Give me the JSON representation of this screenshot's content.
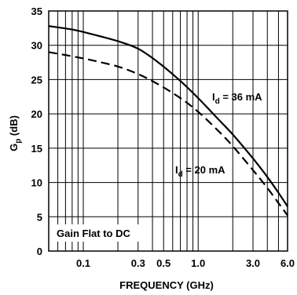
{
  "chart_data": {
    "type": "line",
    "xlabel": "FREQUENCY (GHz)",
    "ylabel_main": "G",
    "ylabel_sub": "p",
    "ylabel_rest": " (dB)",
    "x_scale": "log",
    "xlim": [
      0.05,
      6.0
    ],
    "ylim": [
      0,
      35
    ],
    "x_ticks": [
      {
        "value": 0.1,
        "label": "0.1"
      },
      {
        "value": 0.3,
        "label": "0.3"
      },
      {
        "value": 0.5,
        "label": "0.5"
      },
      {
        "value": 1.0,
        "label": "1.0"
      },
      {
        "value": 3.0,
        "label": "3.0"
      },
      {
        "value": 6.0,
        "label": "6.0"
      }
    ],
    "x_gridlines": [
      0.06,
      0.07,
      0.08,
      0.09,
      0.1,
      0.2,
      0.3,
      0.4,
      0.5,
      0.6,
      0.7,
      0.8,
      0.9,
      1.0,
      2.0,
      3.0,
      4.0,
      5.0,
      6.0
    ],
    "y_ticks": [
      0,
      5,
      10,
      15,
      20,
      25,
      30,
      35
    ],
    "grid": true,
    "series": [
      {
        "label_main": "I",
        "label_sub": "d",
        "label_rest": " = 36 mA",
        "style": "solid",
        "x": [
          0.05,
          0.08,
          0.12,
          0.2,
          0.3,
          0.45,
          0.7,
          1.0,
          1.5,
          2.0,
          3.0,
          4.0,
          5.0,
          6.0
        ],
        "y": [
          32.8,
          32.3,
          31.6,
          30.6,
          29.5,
          27.5,
          24.8,
          22.3,
          19.2,
          17.0,
          13.5,
          10.8,
          8.5,
          6.5
        ]
      },
      {
        "label_main": "I",
        "label_sub": "d",
        "label_rest": " = 20 mA",
        "style": "dashed",
        "x": [
          0.05,
          0.08,
          0.12,
          0.2,
          0.3,
          0.45,
          0.7,
          1.0,
          1.5,
          2.0,
          3.0,
          4.0,
          5.0,
          6.0
        ],
        "y": [
          29.0,
          28.4,
          27.8,
          26.9,
          25.8,
          24.3,
          22.3,
          20.3,
          17.5,
          15.3,
          11.8,
          9.2,
          7.0,
          5.2
        ]
      }
    ],
    "annotation": "Gain Flat to DC"
  }
}
